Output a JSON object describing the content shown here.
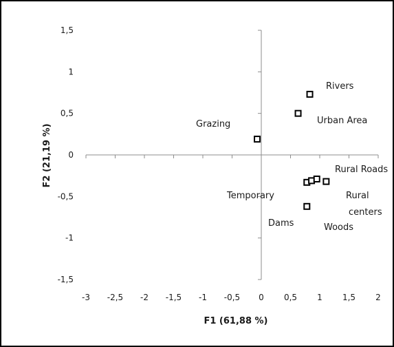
{
  "chart_data": {
    "type": "scatter",
    "xlabel": "F1 (61,88 %)",
    "ylabel": "F2 (21,19 %)",
    "xlim": [
      -3,
      2
    ],
    "ylim": [
      -1.5,
      1.5
    ],
    "x_ticks": [
      "-3",
      "-2,5",
      "-2",
      "-1,5",
      "-1",
      "-0,5",
      "0",
      "0,5",
      "1",
      "1,5",
      "2"
    ],
    "y_ticks": [
      "1,5",
      "1",
      "0,5",
      "0",
      "-0,5",
      "-1",
      "-1,5"
    ],
    "grid": false,
    "marker": "open-square",
    "points": [
      {
        "x": 0.83,
        "y": 0.73
      },
      {
        "x": 0.63,
        "y": 0.5
      },
      {
        "x": -0.07,
        "y": 0.19
      },
      {
        "x": 0.78,
        "y": -0.33
      },
      {
        "x": 0.86,
        "y": -0.31
      },
      {
        "x": 0.95,
        "y": -0.29
      },
      {
        "x": 1.11,
        "y": -0.32
      },
      {
        "x": 0.78,
        "y": -0.62
      }
    ],
    "labels": [
      {
        "text": "Rivers"
      },
      {
        "text": "Urban Area"
      },
      {
        "text": "Grazing"
      },
      {
        "text": "Rural Roads"
      },
      {
        "text": "Temporary"
      },
      {
        "text": "Rural"
      },
      {
        "text": "centers"
      },
      {
        "text": "Dams"
      },
      {
        "text": "Woods"
      }
    ]
  }
}
